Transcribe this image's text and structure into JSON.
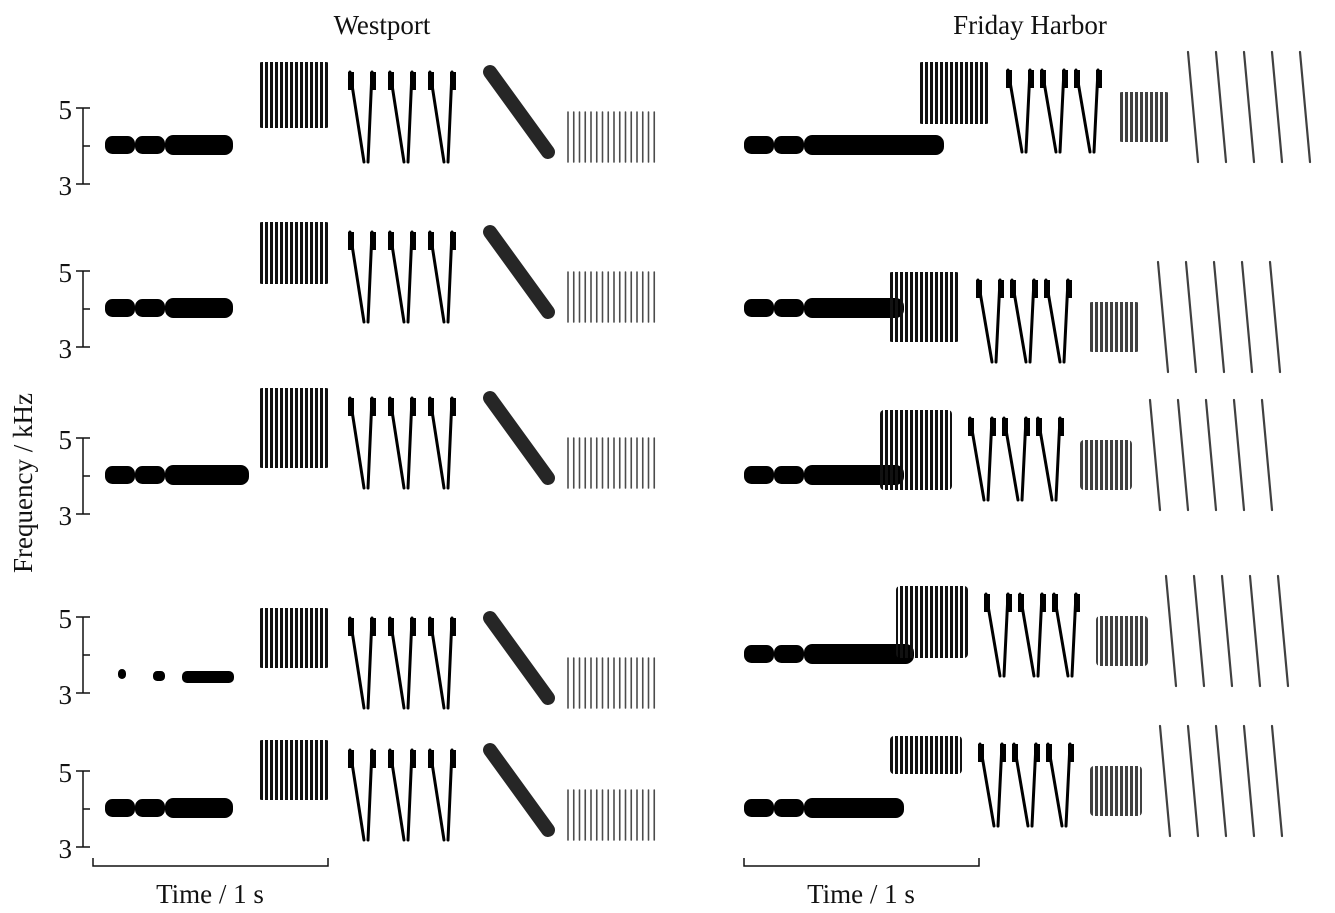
{
  "titles": {
    "left": "Westport",
    "right": "Friday Harbor"
  },
  "y_axis": {
    "title": "Frequency / kHz",
    "ticks": [
      "5",
      "3"
    ]
  },
  "time_bar": {
    "label": "Time / 1 s"
  },
  "colors": {
    "ink": "#000000",
    "background": "#ffffff"
  }
}
